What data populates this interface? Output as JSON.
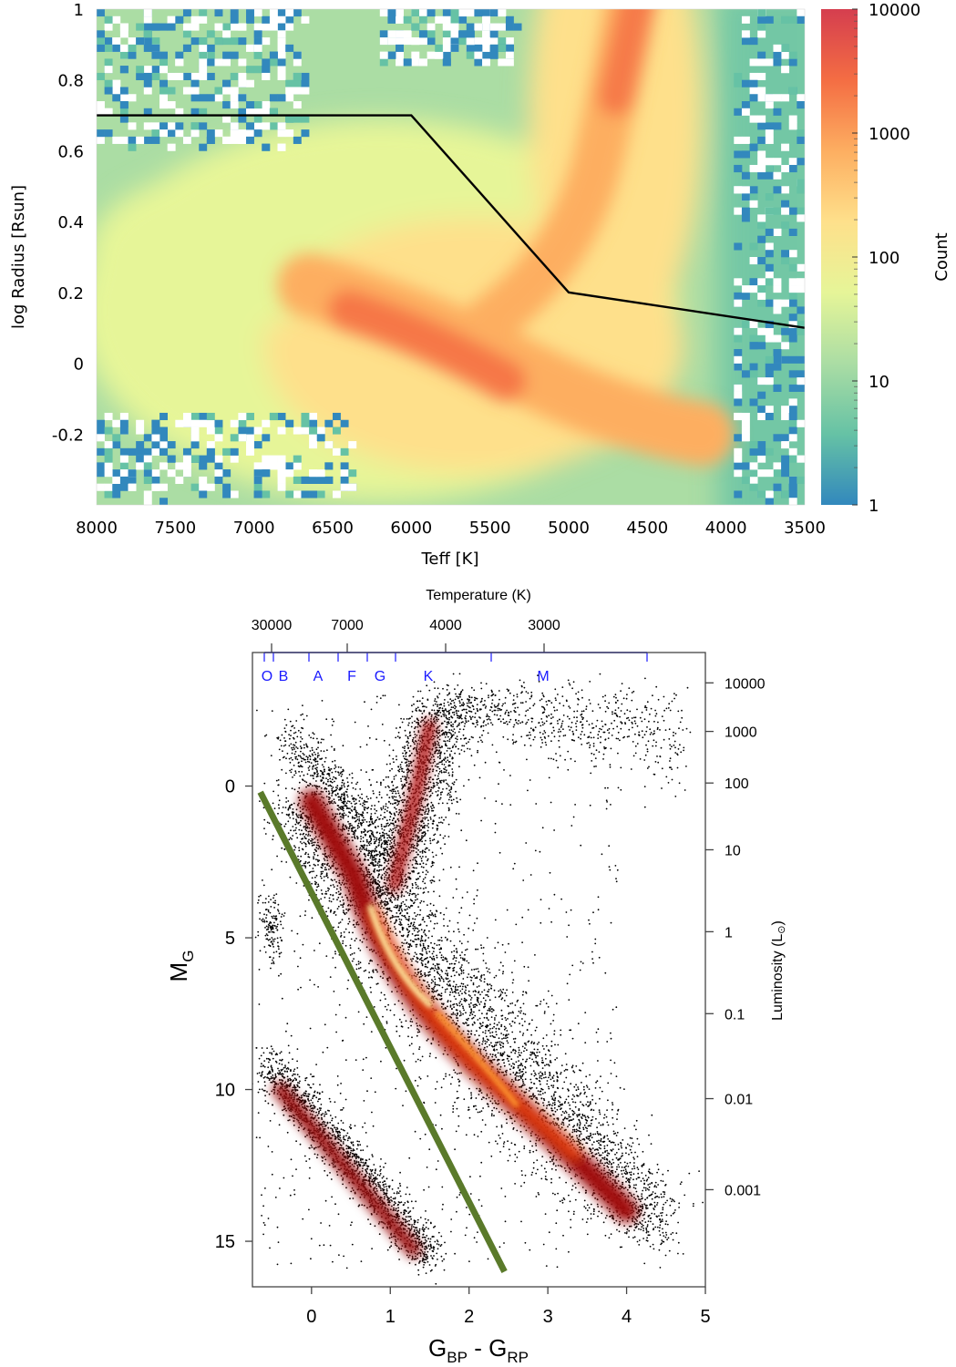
{
  "chart_data": [
    {
      "type": "heatmap",
      "xlabel": "Teff [K]",
      "ylabel": "log Radius [Rsun]",
      "xlim": [
        8000,
        3500
      ],
      "ylim": [
        -0.4,
        1.0
      ],
      "x_ticks": [
        "8000",
        "7500",
        "7000",
        "6500",
        "6000",
        "5500",
        "5000",
        "4500",
        "4000",
        "3500"
      ],
      "y_ticks": [
        "1",
        "0.8",
        "0.6",
        "0.4",
        "0.2",
        "0",
        "-0.2"
      ],
      "colorbar": {
        "label": "Count",
        "scale": "log",
        "range": [
          1,
          10000
        ],
        "ticks": [
          "10000",
          "1000",
          "100",
          "10",
          "1"
        ],
        "colors": [
          "#3288bd",
          "#66c2a5",
          "#abdda4",
          "#e6f598",
          "#fee08b",
          "#fdae61",
          "#f46d43",
          "#d53e4f"
        ]
      },
      "boundary_line": {
        "color": "#000000",
        "x": [
          8000,
          6000,
          5000,
          3500
        ],
        "y": [
          0.7,
          0.7,
          0.2,
          0.1
        ]
      },
      "density_features": [
        {
          "feature": "main sequence / subgiant concentration",
          "teff_center": 5700,
          "log_radius_center": 0.05,
          "peak_count": 1000
        },
        {
          "feature": "giant branch",
          "teff_center": 4700,
          "log_radius_center": 0.7,
          "peak_count": 1000
        }
      ]
    },
    {
      "type": "scatter",
      "xlabel_main": "G",
      "xlabel_sub1": "BP",
      "xlabel_mid": " - G",
      "xlabel_sub2": "RP",
      "ylabel_main": "M",
      "ylabel_sub": "G",
      "xlim": [
        -0.75,
        5
      ],
      "ylim": [
        16.5,
        -4.4
      ],
      "x_ticks": [
        "0",
        "1",
        "2",
        "3",
        "4",
        "5"
      ],
      "y_ticks": [
        "0",
        "5",
        "10",
        "15"
      ],
      "top_axis": {
        "label": "Temperature (K)",
        "ticks": [
          "30000",
          "7000",
          "4000",
          "3000"
        ],
        "spectral_classes": [
          "O",
          "B",
          "A",
          "F",
          "G",
          "K",
          "M"
        ],
        "class_color": "#1a1aff"
      },
      "right_axis": {
        "label_main": "Luminosity (L",
        "label_symbol": "⊙",
        "label_end": ")",
        "ticks": [
          "10000",
          "1000",
          "100",
          "10",
          "1",
          "0.1",
          "0.01",
          "0.001"
        ]
      },
      "separator_line": {
        "color": "#5a7a2a",
        "x": [
          -0.65,
          2.45
        ],
        "y": [
          0.2,
          16.0
        ]
      },
      "density_features": [
        {
          "feature": "main sequence",
          "from": [
            0.0,
            1.0
          ],
          "to": [
            4.3,
            14.5
          ]
        },
        {
          "feature": "turnoff / densest region",
          "x": 0.9,
          "y": 5.3
        },
        {
          "feature": "red giant branch",
          "from": [
            1.0,
            3.0
          ],
          "to": [
            1.6,
            -2.2
          ]
        },
        {
          "feature": "red clump",
          "x": 1.2,
          "y": 0.7
        },
        {
          "feature": "asymptotic giant branch tail",
          "from": [
            2.0,
            -2.5
          ],
          "to": [
            4.7,
            -2.0
          ]
        },
        {
          "feature": "white dwarf sequence",
          "from": [
            -0.6,
            9.5
          ],
          "to": [
            1.6,
            15.8
          ]
        },
        {
          "feature": "hot subdwarfs",
          "x": -0.5,
          "y": 4.6
        }
      ]
    }
  ]
}
